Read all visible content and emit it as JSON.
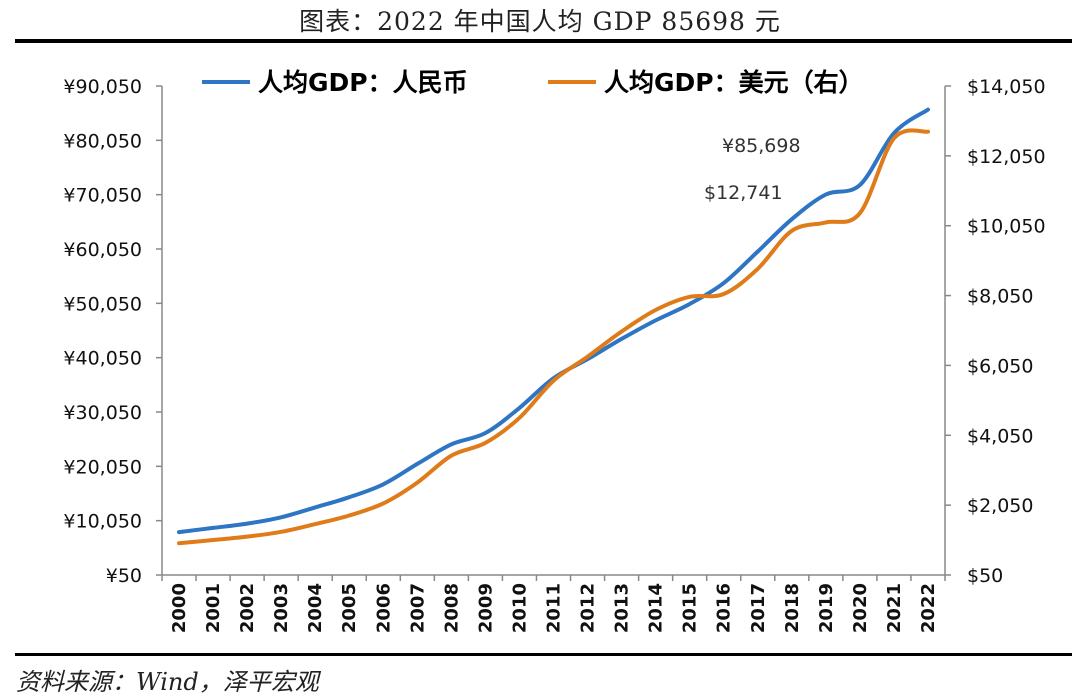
{
  "title": "图表：2022 年中国人均 GDP 85698 元",
  "source": "资料来源：Wind，泽平宏观",
  "chart_data": {
    "type": "line",
    "x": [
      "2000",
      "2001",
      "2002",
      "2003",
      "2004",
      "2005",
      "2006",
      "2007",
      "2008",
      "2009",
      "2010",
      "2011",
      "2012",
      "2013",
      "2014",
      "2015",
      "2016",
      "2017",
      "2018",
      "2019",
      "2020",
      "2021",
      "2022"
    ],
    "y_left": {
      "range": [
        50,
        90050
      ],
      "ticks": [
        "¥50",
        "¥10,050",
        "¥20,050",
        "¥30,050",
        "¥40,050",
        "¥50,050",
        "¥60,050",
        "¥70,050",
        "¥80,050",
        "¥90,050"
      ]
    },
    "y_right": {
      "range": [
        50,
        14050
      ],
      "ticks": [
        "$50",
        "$2,050",
        "$4,050",
        "$6,050",
        "$8,050",
        "$10,050",
        "$12,050",
        "$14,050"
      ]
    },
    "series": [
      {
        "name": "人均GDP：人民币",
        "axis": "left",
        "color": "#2e75c3",
        "values": [
          7942,
          8717,
          9506,
          10666,
          12487,
          14368,
          16738,
          20494,
          24100,
          26180,
          30808,
          36277,
          39771,
          43497,
          46912,
          49922,
          53783,
          59592,
          65534,
          70078,
          71828,
          81370,
          85698
        ]
      },
      {
        "name": "人均GDP：美元（右）",
        "axis": "right",
        "color": "#e07b1a",
        "values": [
          959,
          1053,
          1148,
          1288,
          1508,
          1753,
          2099,
          2694,
          3468,
          3832,
          4550,
          5614,
          6300,
          7020,
          7636,
          8016,
          8094,
          8817,
          9905,
          10144,
          10409,
          12551,
          12741
        ]
      }
    ],
    "annotations": [
      "¥85,698",
      "$12,741"
    ],
    "legend": "top",
    "grid": false
  }
}
